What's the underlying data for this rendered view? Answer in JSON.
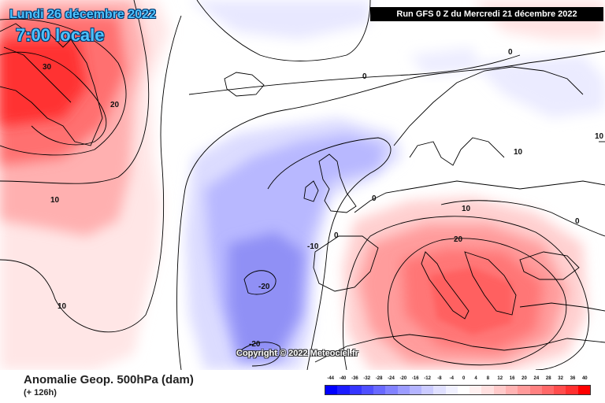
{
  "header": {
    "date_title": "Lundi 26 décembre 2022",
    "time_title": "7:00 locale",
    "run_label": "Run GFS 0 Z du Mercredi 21 décembre 2022"
  },
  "copyright": "Copyright © 2022 Meteociel.fr",
  "footer": {
    "title": "Anomalie Geop. 500hPa (dam)",
    "subtitle": "(+ 126h)"
  },
  "contour_labels": [
    "30",
    "20",
    "10",
    "10",
    "0",
    "0",
    "0",
    "0",
    "-10",
    "-20",
    "-20",
    "10",
    "20",
    "10",
    "10",
    "0"
  ],
  "legend": {
    "labels": [
      "-44",
      "-40",
      "-36",
      "-32",
      "-28",
      "-24",
      "-20",
      "-16",
      "-12",
      "-8",
      "-4",
      "0",
      "4",
      "8",
      "12",
      "16",
      "20",
      "24",
      "28",
      "32",
      "36",
      "40"
    ],
    "colors": [
      "#0000ff",
      "#1c1cff",
      "#3535ff",
      "#4f4fff",
      "#6969ff",
      "#8282ff",
      "#9c9cff",
      "#b4b4ff",
      "#cbcbff",
      "#e0e0ff",
      "#f1f1ff",
      "#ffffff",
      "#fff1f1",
      "#ffe0e0",
      "#ffcaca",
      "#ffb3b3",
      "#ff9a9a",
      "#ff8181",
      "#ff6868",
      "#ff4d4d",
      "#ff3030",
      "#ff0000"
    ]
  }
}
